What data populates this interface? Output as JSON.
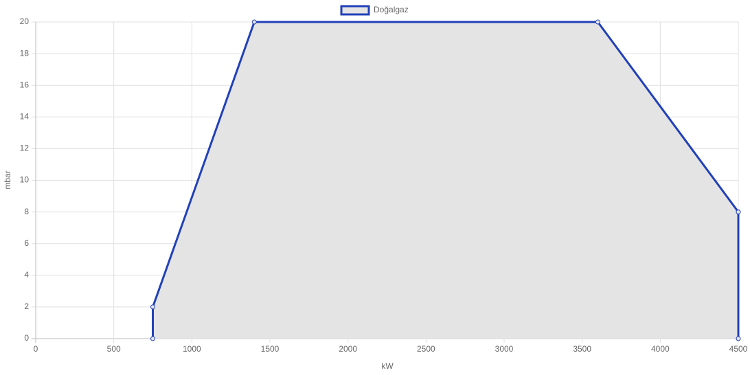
{
  "chart_data": {
    "type": "line",
    "x": [
      750,
      750,
      1400,
      3600,
      4500,
      4500
    ],
    "series": [
      {
        "name": "Doğalgaz",
        "color": "#2140b8",
        "fill_color": "#e4e4e5",
        "values": [
          0,
          2,
          20,
          20,
          8,
          0
        ]
      }
    ],
    "xlabel": "kW",
    "ylabel": "mbar",
    "xlim": [
      0,
      4500
    ],
    "xticks": [
      0,
      500,
      1000,
      1500,
      2000,
      2500,
      3000,
      3500,
      4000,
      4500
    ],
    "ylim": [
      0,
      20
    ],
    "yticks": [
      0,
      2,
      4,
      6,
      8,
      10,
      12,
      14,
      16,
      18,
      20
    ],
    "grid": true,
    "fill": true,
    "legend": "top"
  }
}
